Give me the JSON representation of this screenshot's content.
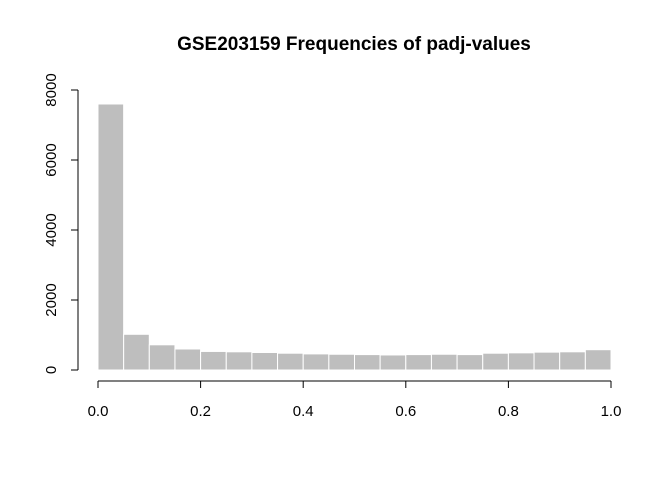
{
  "chart_data": {
    "type": "bar",
    "title": "GSE203159 Frequencies of padj-values",
    "xlabel": "",
    "ylabel": "",
    "bar_color": "#bebebe",
    "bar_border_color": "#ffffff",
    "bin_width": 0.05,
    "bin_starts": [
      0.0,
      0.05,
      0.1,
      0.15,
      0.2,
      0.25,
      0.3,
      0.35,
      0.4,
      0.45,
      0.5,
      0.55,
      0.6,
      0.65,
      0.7,
      0.75,
      0.8,
      0.85,
      0.9,
      0.95
    ],
    "values": [
      7600,
      1020,
      720,
      600,
      530,
      520,
      500,
      480,
      460,
      450,
      440,
      430,
      440,
      450,
      440,
      480,
      490,
      510,
      520,
      580
    ],
    "xlim": [
      0,
      1
    ],
    "ylim": [
      0,
      8000
    ],
    "x_ticks": [
      0.0,
      0.2,
      0.4,
      0.6,
      0.8,
      1.0
    ],
    "x_tick_labels": [
      "0.0",
      "0.2",
      "0.4",
      "0.6",
      "0.8",
      "1.0"
    ],
    "y_ticks": [
      0,
      2000,
      4000,
      6000,
      8000
    ],
    "y_tick_labels": [
      "0",
      "2000",
      "4000",
      "6000",
      "8000"
    ],
    "grid": false,
    "legend": "none"
  }
}
